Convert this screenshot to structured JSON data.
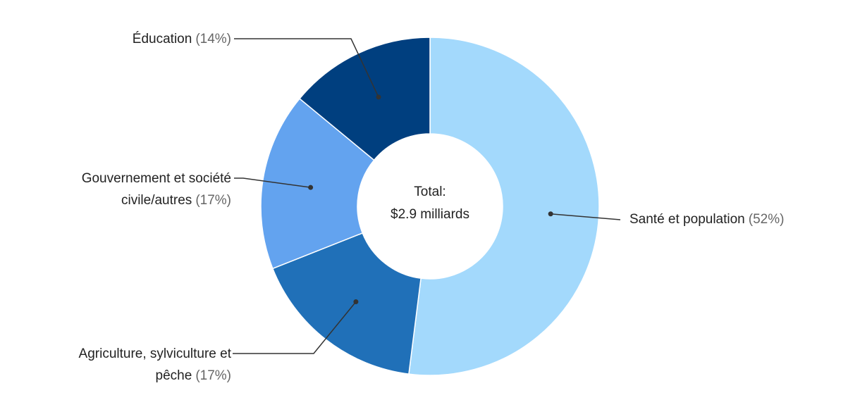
{
  "chart_data": {
    "type": "donut",
    "center_text": [
      "Total:",
      "$2.9 milliards"
    ],
    "categories": [
      "Santé et population",
      "Agriculture, sylviculture et pêche",
      "Gouvernement et société civile/autres",
      "Éducation"
    ],
    "values": [
      52,
      17,
      17,
      14
    ],
    "value_labels": [
      "(52%)",
      "(17%)",
      "(17%)",
      "(14%)"
    ],
    "colors": [
      "#a3d9fc",
      "#2070b8",
      "#63a3ef",
      "#003f7f"
    ]
  }
}
